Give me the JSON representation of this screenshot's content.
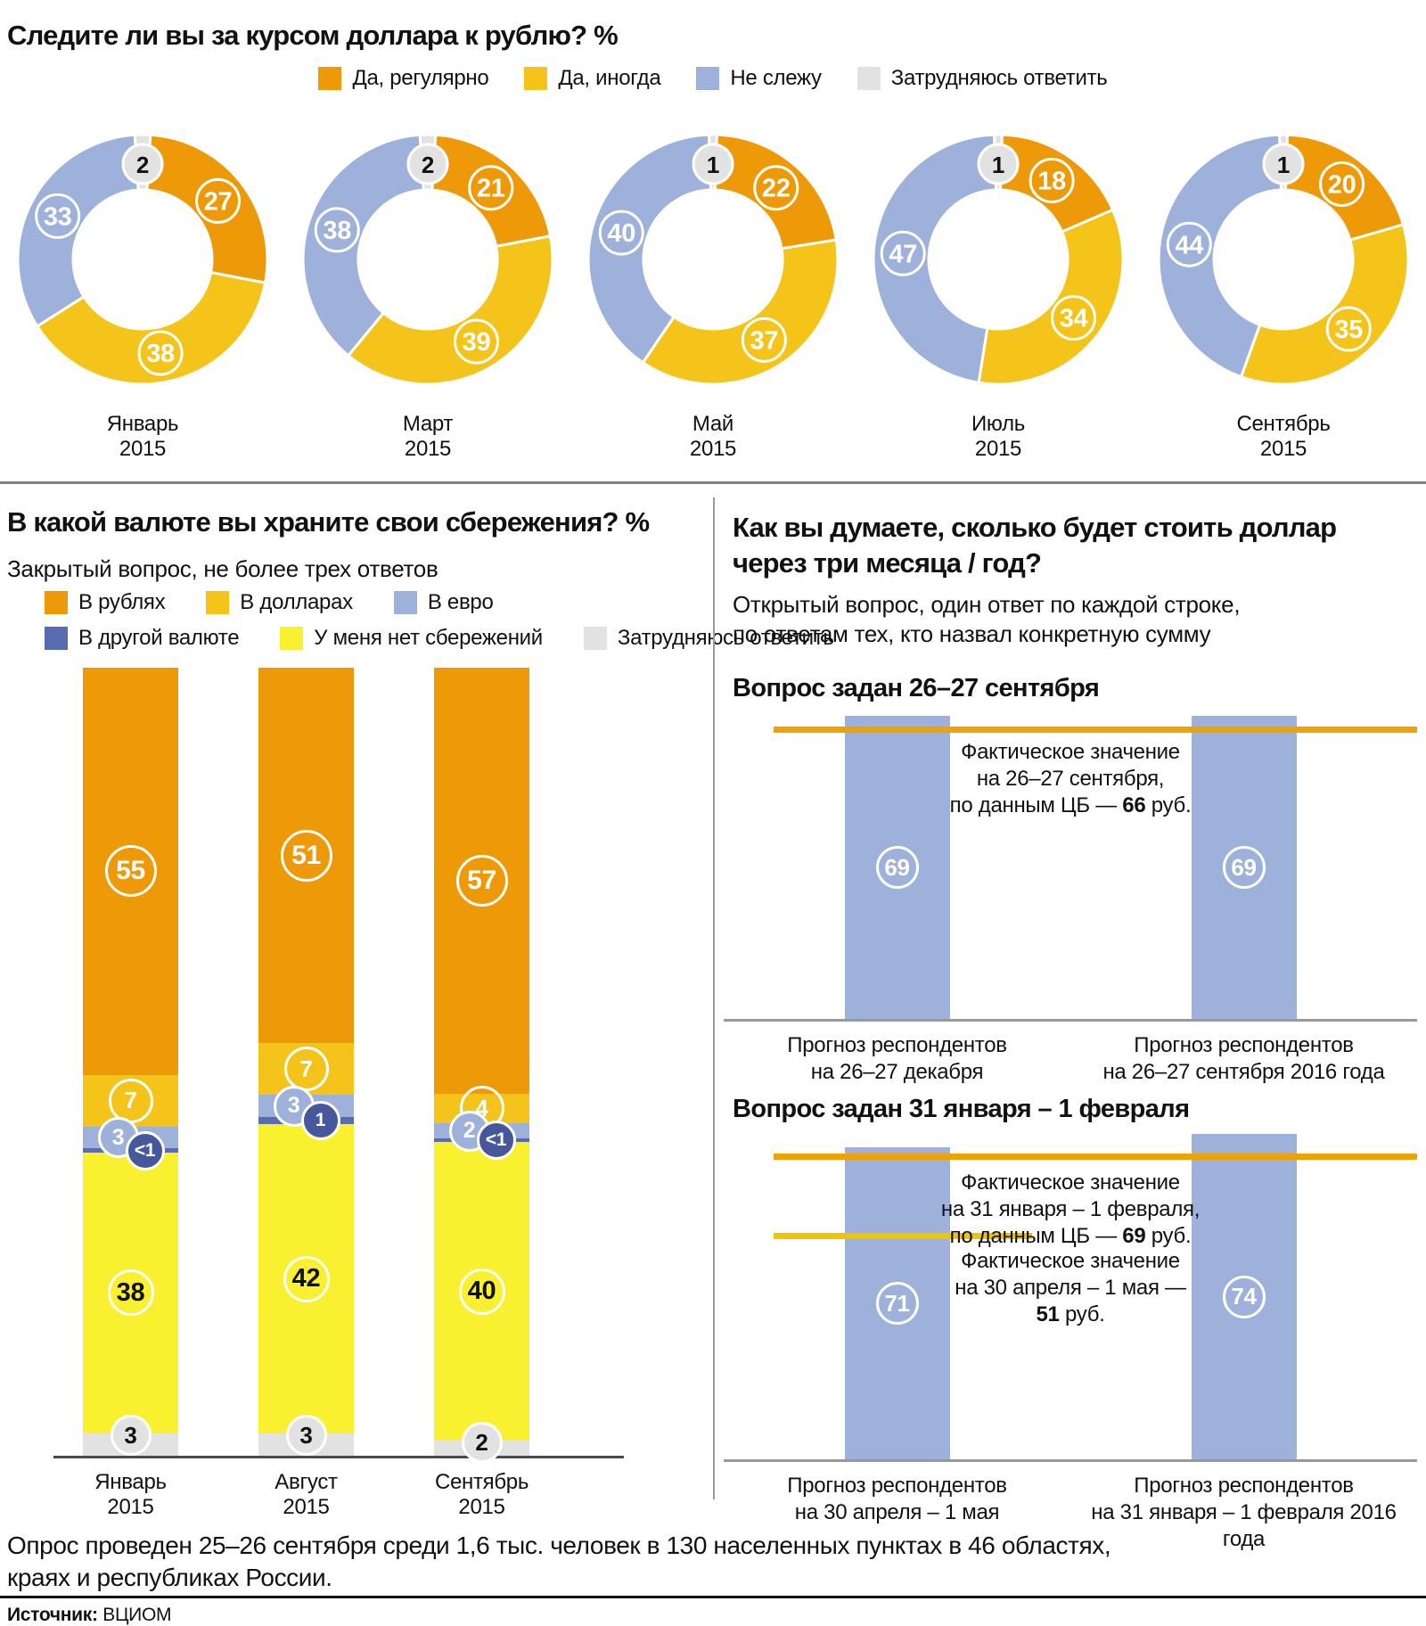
{
  "colors": {
    "orange": "#EE9A08",
    "gold": "#F5C41A",
    "blue": "#9DB1DB",
    "grey": "#E2E2E2",
    "dark_blue": "#5A6CB0",
    "dark_blue_label": "#46589B",
    "bright_yellow": "#F9F12F",
    "bar_blue": "#9DB1DB",
    "ref_line_orange": "#F0A202",
    "ref_line_gold": "#EFC400"
  },
  "forecast_section": {
    "title": "Как вы думаете, сколько будет стоить доллар\nчерез три месяца / год?",
    "subtitle": "Открытый вопрос, один ответ по каждой строке,\nпо ответам тех, кто назвал конкретную сумму"
  },
  "footer": {
    "note_line1": "Опрос проведен 25–26 сентября среди 1,6 тыс. человек в 130 населенных пунктах в 46 областях,",
    "note_line2": "краях и республиках России.",
    "source_label": "Источник:",
    "source_value": "ВЦИОМ"
  },
  "chart_data": [
    {
      "type": "pie",
      "variant": "donut",
      "title": "Следите ли вы за курсом доллара к рублю? %",
      "legend": [
        "Да, регулярно",
        "Да, иногда",
        "Не слежу",
        "Затрудняюсь ответить"
      ],
      "legend_colors": [
        "#EE9A08",
        "#F5C41A",
        "#9DB1DB",
        "#E2E2E2"
      ],
      "categories": [
        {
          "month": "Январь",
          "year": "2015"
        },
        {
          "month": "Март",
          "year": "2015"
        },
        {
          "month": "Май",
          "year": "2015"
        },
        {
          "month": "Июль",
          "year": "2015"
        },
        {
          "month": "Сентябрь",
          "year": "2015"
        }
      ],
      "series": [
        {
          "category": "Январь 2015",
          "values": [
            27,
            38,
            33,
            2
          ]
        },
        {
          "category": "Март 2015",
          "values": [
            21,
            39,
            38,
            2
          ]
        },
        {
          "category": "Май 2015",
          "values": [
            22,
            37,
            40,
            1
          ]
        },
        {
          "category": "Июль 2015",
          "values": [
            18,
            34,
            47,
            1
          ]
        },
        {
          "category": "Сентябрь 2015",
          "values": [
            20,
            35,
            44,
            1
          ]
        }
      ]
    },
    {
      "type": "bar",
      "stacked": true,
      "title": "В какой валюте вы храните свои сбережения? %",
      "subtitle": "Закрытый вопрос, не более трех ответов",
      "legend": [
        "В рублях",
        "В долларах",
        "В евро",
        "В другой валюте",
        "У меня нет сбережений",
        "Затрудняюсь ответить"
      ],
      "legend_colors": [
        "#EE9A08",
        "#F5C41A",
        "#9DB1DB",
        "#5A6CB0",
        "#F9F12F",
        "#E2E2E2"
      ],
      "categories": [
        {
          "month": "Январь",
          "year": "2015"
        },
        {
          "month": "Август",
          "year": "2015"
        },
        {
          "month": "Сентябрь",
          "year": "2015"
        }
      ],
      "series": [
        {
          "name": "В рублях",
          "display": [
            "55",
            "51",
            "57"
          ],
          "values": [
            55,
            51,
            57
          ]
        },
        {
          "name": "В долларах",
          "display": [
            "7",
            "7",
            "4"
          ],
          "values": [
            7,
            7,
            4
          ]
        },
        {
          "name": "В евро",
          "display": [
            "3",
            "3",
            "2"
          ],
          "values": [
            3,
            3,
            2
          ]
        },
        {
          "name": "В другой валюте",
          "display": [
            "<1",
            "1",
            "<1"
          ],
          "values": [
            0.5,
            1,
            0.5
          ]
        },
        {
          "name": "У меня нет сбережений",
          "display": [
            "38",
            "42",
            "40"
          ],
          "values": [
            38,
            42,
            40
          ]
        },
        {
          "name": "Затрудняюсь ответить",
          "display": [
            "3",
            "3",
            "2"
          ],
          "values": [
            3,
            3,
            2
          ]
        }
      ]
    },
    {
      "type": "bar",
      "heading": "Вопрос задан 26–27 сентября",
      "ylim": [
        0,
        69
      ],
      "bars": [
        {
          "value": 69,
          "label": [
            "Прогноз респондентов",
            "на 26–27 декабря"
          ]
        },
        {
          "value": 69,
          "label": [
            "Прогноз респондентов",
            "на 26–27 сентября 2016 года"
          ]
        }
      ],
      "ref_lines": [
        {
          "value": 66,
          "annotation": [
            [
              "Фактическое значение"
            ],
            [
              "на 26–27 сентября,"
            ],
            [
              "по данным ЦБ — ",
              "66",
              " руб."
            ]
          ]
        }
      ]
    },
    {
      "type": "bar",
      "heading": "Вопрос задан 31 января – 1 февраля",
      "ylim": [
        0,
        74
      ],
      "bars": [
        {
          "value": 71,
          "label": [
            "Прогноз респондентов",
            "на 30 апреля – 1 мая"
          ]
        },
        {
          "value": 74,
          "label": [
            "Прогноз респондентов",
            "на 31 января – 1 февраля 2016 года"
          ]
        }
      ],
      "ref_lines": [
        {
          "value": 69,
          "annotation": [
            [
              "Фактическое значение"
            ],
            [
              "на 31 января – 1 февраля,"
            ],
            [
              "по данным ЦБ — ",
              "69",
              " руб."
            ]
          ]
        },
        {
          "value": 51,
          "annotation": [
            [
              "Фактическое значение"
            ],
            [
              "на 30 апреля – 1 мая —"
            ],
            [
              "",
              "51",
              " руб."
            ]
          ]
        }
      ]
    }
  ]
}
